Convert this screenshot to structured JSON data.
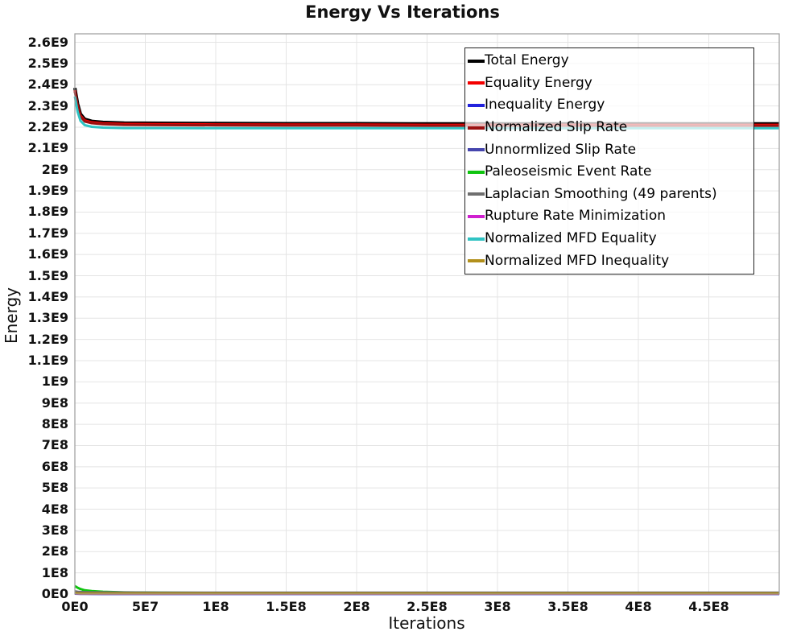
{
  "title": "Energy Vs Iterations",
  "chart_data": {
    "type": "line",
    "title": "Energy Vs Iterations",
    "xlabel": "Iterations",
    "ylabel": "Energy",
    "xlim": [
      0,
      500000000
    ],
    "ylim": [
      0,
      2640000000
    ],
    "grid": true,
    "legend_position": "top-right",
    "x_tick_values": [
      0,
      50000000,
      100000000,
      150000000,
      200000000,
      250000000,
      300000000,
      350000000,
      400000000,
      450000000
    ],
    "x_tick_labels": [
      "0E0",
      "5E7",
      "1E8",
      "1.5E8",
      "2E8",
      "2.5E8",
      "3E8",
      "3.5E8",
      "4E8",
      "4.5E8"
    ],
    "y_tick_step": 100000000,
    "y_tick_labels": [
      "0E0",
      "1E8",
      "2E8",
      "3E8",
      "4E8",
      "5E8",
      "6E8",
      "7E8",
      "8E8",
      "9E8",
      "1E9",
      "1.1E9",
      "1.2E9",
      "1.3E9",
      "1.4E9",
      "1.5E9",
      "1.6E9",
      "1.7E9",
      "1.8E9",
      "1.9E9",
      "2E9",
      "2.1E9",
      "2.2E9",
      "2.3E9",
      "2.4E9",
      "2.5E9",
      "2.6E9"
    ],
    "x": [
      0,
      2000000,
      4000000,
      7000000,
      12000000,
      20000000,
      35000000,
      60000000,
      100000000,
      150000000,
      200000000,
      250000000,
      300000000,
      350000000,
      400000000,
      450000000,
      500000000
    ],
    "series": [
      {
        "name": "Total Energy",
        "color": "#000000",
        "width": 4,
        "values": [
          2385000000,
          2310000000,
          2262000000,
          2238000000,
          2228000000,
          2223000000,
          2220000000,
          2219000000,
          2218000000,
          2217000000,
          2217000000,
          2216000000,
          2216000000,
          2216000000,
          2216000000,
          2216000000,
          2216000000
        ]
      },
      {
        "name": "Equality Energy",
        "color": "#f40000",
        "width": 3,
        "values": [
          2374000000,
          2300000000,
          2255000000,
          2232000000,
          2223000000,
          2218000000,
          2215000000,
          2214000000,
          2213000000,
          2212000000,
          2212000000,
          2211000000,
          2211000000,
          2211000000,
          2211000000,
          2211000000,
          2211000000
        ]
      },
      {
        "name": "Inequality Energy",
        "color": "#2222dd",
        "width": 3,
        "values": [
          4000000,
          3000000,
          2000000,
          2000000,
          1500000,
          1000000,
          1000000,
          1000000,
          1000000,
          1000000,
          1000000,
          1000000,
          1000000,
          1000000,
          1000000,
          1000000,
          1000000
        ]
      },
      {
        "name": "Normalized Slip Rate",
        "color": "#9b1010",
        "width": 3,
        "values": [
          2368000000,
          2295000000,
          2250000000,
          2227000000,
          2219000000,
          2214000000,
          2211000000,
          2210000000,
          2209000000,
          2208000000,
          2208000000,
          2207000000,
          2207000000,
          2207000000,
          2207000000,
          2207000000,
          2207000000
        ]
      },
      {
        "name": "Unnormlized Slip Rate",
        "color": "#4646ae",
        "width": 3,
        "values": [
          2000000,
          1500000,
          1000000,
          1000000,
          1000000,
          1000000,
          1000000,
          1000000,
          1000000,
          1000000,
          1000000,
          1000000,
          1000000,
          1000000,
          1000000,
          1000000,
          1000000
        ]
      },
      {
        "name": "Paleoseismic Event Rate",
        "color": "#0fc40f",
        "width": 3,
        "values": [
          38000000,
          30000000,
          24000000,
          18000000,
          14000000,
          11000000,
          8000000,
          6500000,
          5500000,
          5000000,
          4500000,
          4500000,
          4000000,
          4000000,
          4000000,
          4000000,
          4000000
        ]
      },
      {
        "name": "Laplacian Smoothing (49 parents)",
        "color": "#6e6e6e",
        "width": 3,
        "values": [
          13000000,
          11000000,
          10000000,
          9000000,
          8500000,
          8000000,
          7500000,
          7000000,
          7000000,
          6500000,
          6500000,
          6500000,
          6500000,
          6500000,
          6500000,
          6500000,
          6500000
        ]
      },
      {
        "name": "Rupture Rate Minimization",
        "color": "#cf1fcf",
        "width": 3,
        "values": [
          3000000,
          2500000,
          2000000,
          2000000,
          2000000,
          2000000,
          2000000,
          2000000,
          2000000,
          2000000,
          2000000,
          2000000,
          2000000,
          2000000,
          2000000,
          2000000,
          2000000
        ]
      },
      {
        "name": "Normalized MFD Equality",
        "color": "#2fc3c3",
        "width": 3,
        "values": [
          2345000000,
          2272000000,
          2230000000,
          2210000000,
          2202000000,
          2198000000,
          2196000000,
          2196000000,
          2195000000,
          2195000000,
          2195000000,
          2195000000,
          2195000000,
          2195000000,
          2195000000,
          2195000000,
          2195000000
        ]
      },
      {
        "name": "Normalized MFD Inequality",
        "color": "#b2901c",
        "width": 3,
        "values": [
          4000000,
          3500000,
          3000000,
          3000000,
          3000000,
          3000000,
          3000000,
          3000000,
          3000000,
          3000000,
          3000000,
          3000000,
          3000000,
          3000000,
          3000000,
          3000000,
          3000000
        ]
      }
    ],
    "plot_colors": {
      "grid": "#e4e4e4",
      "border": "#9b9b9b",
      "background": "#ffffff"
    }
  }
}
